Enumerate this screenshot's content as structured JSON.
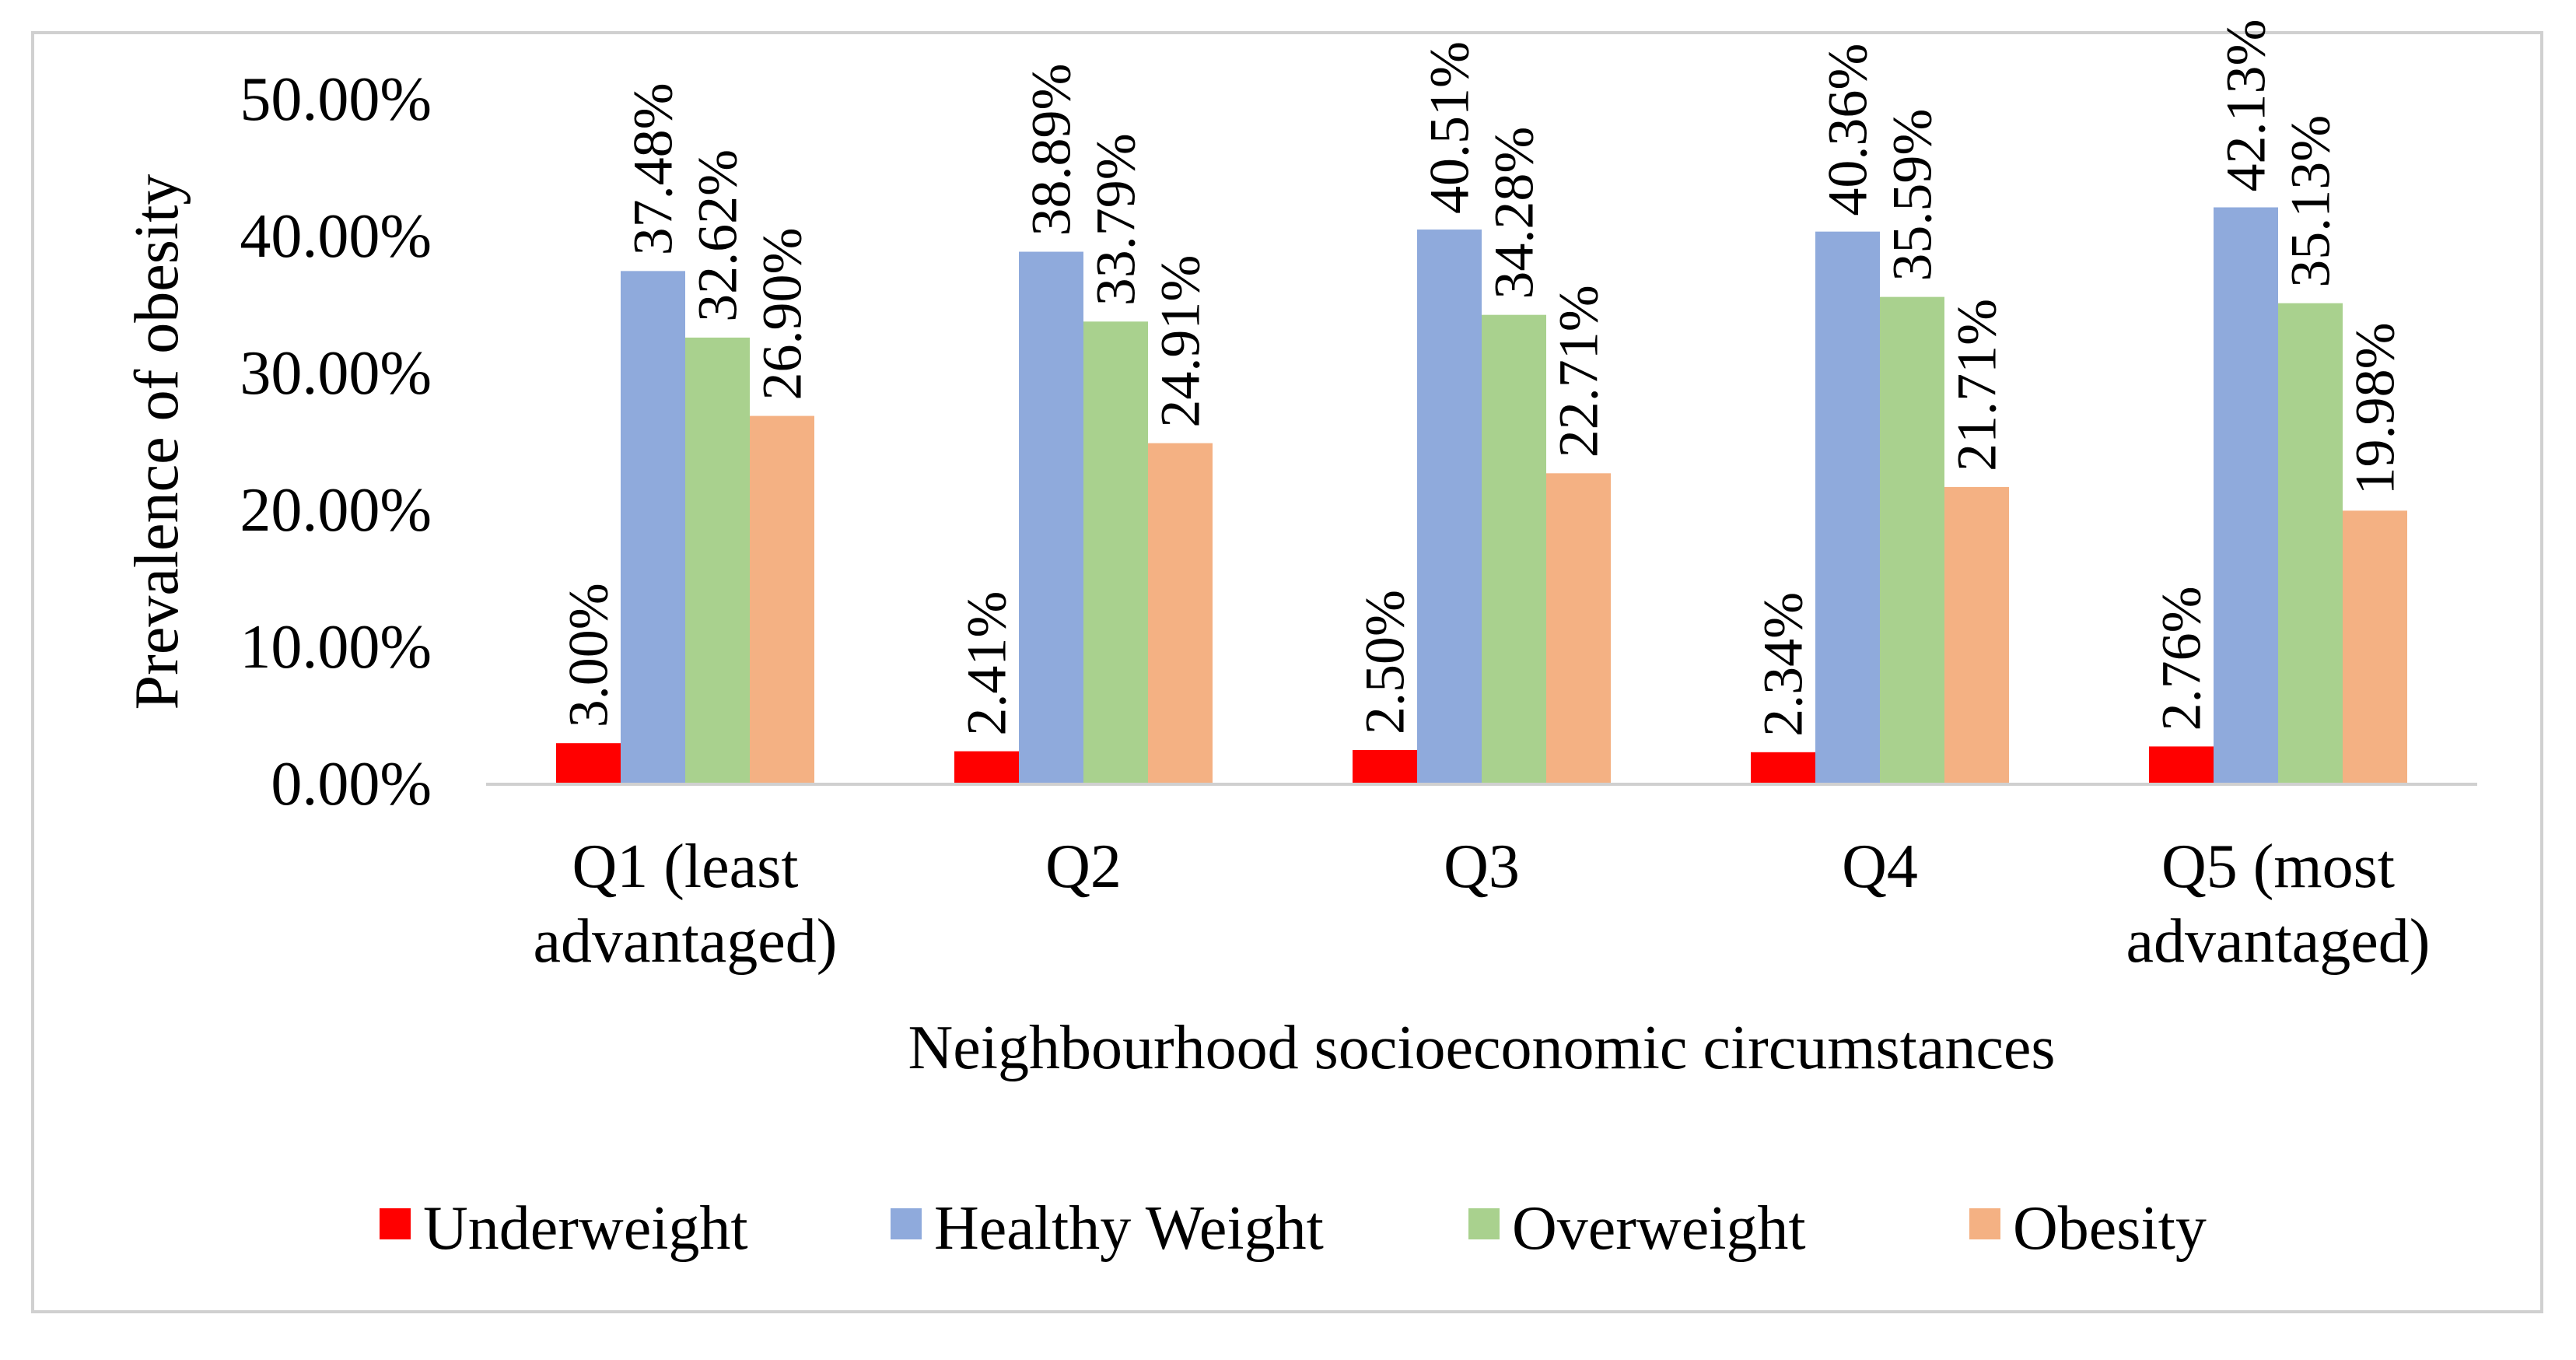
{
  "chart_data": {
    "type": "bar",
    "title": "",
    "xlabel": "Neighbourhood socioeconomic circumstances",
    "ylabel": "Prevalence of obesity",
    "ylim": [
      0,
      50
    ],
    "yticks": [
      0,
      10,
      20,
      30,
      40,
      50
    ],
    "ytick_labels": [
      "0.00%",
      "10.00%",
      "20.00%",
      "30.00%",
      "40.00%",
      "50.00%"
    ],
    "categories": [
      [
        "Q1 (least",
        "advantaged)"
      ],
      [
        "Q2"
      ],
      [
        "Q3"
      ],
      [
        "Q4"
      ],
      [
        "Q5 (most",
        "advantaged)"
      ]
    ],
    "series": [
      {
        "name": "Underweight",
        "color": "#ff0000",
        "values": [
          3.0,
          2.41,
          2.5,
          2.34,
          2.76
        ],
        "labels": [
          "3.00%",
          "2.41%",
          "2.50%",
          "2.34%",
          "2.76%"
        ]
      },
      {
        "name": "Healthy Weight",
        "color": "#8faadc",
        "values": [
          37.48,
          38.89,
          40.51,
          40.36,
          42.13
        ],
        "labels": [
          "37.48%",
          "38.89%",
          "40.51%",
          "40.36%",
          "42.13%"
        ]
      },
      {
        "name": "Overweight",
        "color": "#a9d18e",
        "values": [
          32.62,
          33.79,
          34.28,
          35.59,
          35.13
        ],
        "labels": [
          "32.62%",
          "33.79%",
          "34.28%",
          "35.59%",
          "35.13%"
        ]
      },
      {
        "name": "Obesity",
        "color": "#f4b183",
        "values": [
          26.9,
          24.91,
          22.71,
          21.71,
          19.98
        ],
        "labels": [
          "26.90%",
          "24.91%",
          "22.71%",
          "21.71%",
          "19.98%"
        ]
      }
    ],
    "legend_position": "bottom",
    "grid": false
  }
}
